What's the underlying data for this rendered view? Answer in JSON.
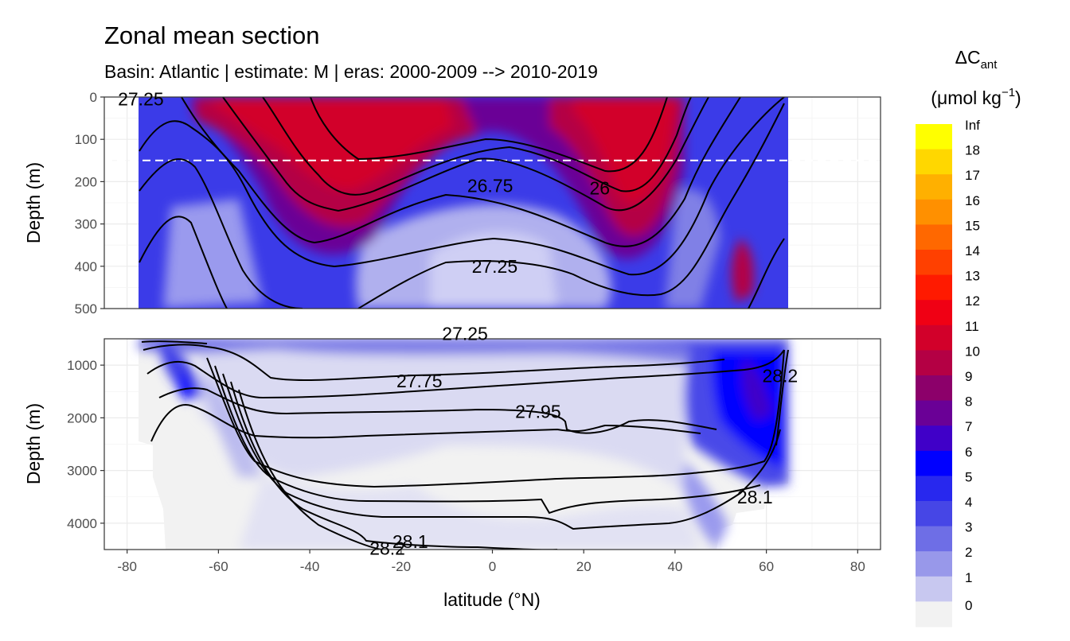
{
  "chart_data": {
    "type": "contour",
    "title": "Zonal mean section",
    "subtitle": "Basin: Atlantic | estimate: M  | eras: 2000-2009 --> 2010-2019",
    "xlabel": "latitude (°N)",
    "x_ticks": [
      -80,
      -60,
      -40,
      -20,
      0,
      20,
      40,
      60,
      80
    ],
    "xlim": [
      -85,
      85
    ],
    "data_lat_range": [
      -77.5,
      64.5
    ],
    "panels": [
      {
        "name": "upper",
        "ylabel": "Depth (m)",
        "ylim": [
          0,
          500
        ],
        "y_ticks": [
          0,
          100,
          200,
          300,
          400,
          500
        ],
        "reference_line_depth": 150,
        "density_labels": [
          {
            "text": "26.75",
            "lat": -0.5,
            "depth": 210
          },
          {
            "text": "26",
            "lat": 23.5,
            "depth": 215
          },
          {
            "text": "27.25",
            "lat": 0.5,
            "depth": 400
          },
          {
            "text": "27.25",
            "lat": -77,
            "depth": 5
          }
        ]
      },
      {
        "name": "lower",
        "ylabel": "Depth (m)",
        "ylim": [
          500,
          4500
        ],
        "y_ticks": [
          1000,
          2000,
          3000,
          4000
        ],
        "density_labels": [
          {
            "text": "27.75",
            "lat": -16,
            "depth": 1300
          },
          {
            "text": "27.95",
            "lat": 10,
            "depth": 1880
          },
          {
            "text": "28.1",
            "lat": -18,
            "depth": 4350
          },
          {
            "text": "28.1",
            "lat": 57.5,
            "depth": 3500
          },
          {
            "text": "28.2",
            "lat": -23,
            "depth": 4480
          },
          {
            "text": "28.2",
            "lat": 63,
            "depth": 1200
          },
          {
            "text": "27.25",
            "lat": -6,
            "depth": 400
          }
        ]
      }
    ],
    "legend": {
      "title": "ΔC",
      "title_sub": "ant",
      "units": "(μmol kg",
      "units_sup": "−1",
      "units_end": ")",
      "labels": [
        "Inf",
        "18",
        "17",
        "16",
        "15",
        "14",
        "13",
        "12",
        "11",
        "10",
        "9",
        "8",
        "7",
        "6",
        "5",
        "4",
        "3",
        "2",
        "1",
        "0"
      ],
      "colors": [
        "#ffff00",
        "#ffd700",
        "#ffb000",
        "#ff9000",
        "#ff6800",
        "#ff4000",
        "#ff1a00",
        "#f00014",
        "#d2002a",
        "#b40044",
        "#8c006a",
        "#6a0096",
        "#4000c8",
        "#0000ff",
        "#2828ee",
        "#4646e6",
        "#6e6ee6",
        "#9898ea",
        "#c8c8f0",
        "#f2f2f2"
      ]
    }
  }
}
